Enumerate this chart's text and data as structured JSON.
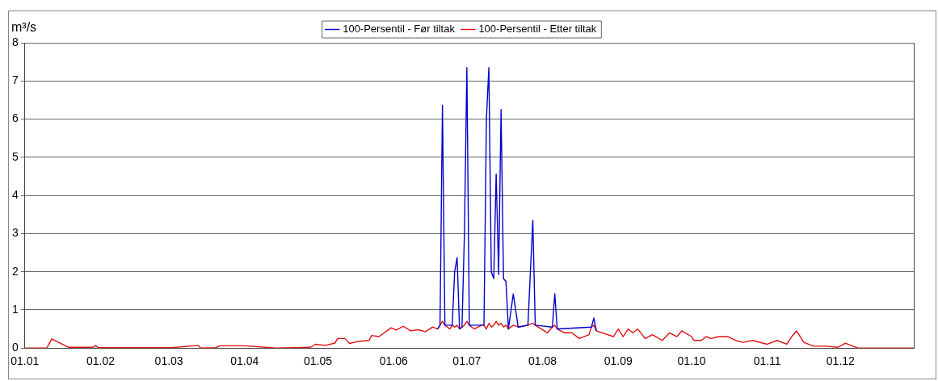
{
  "chart_data": {
    "type": "line",
    "ylabel": "m³/s",
    "legend": "top",
    "grid": "y",
    "marker": "none",
    "line_style": "solid",
    "xlim": [
      "--01-01",
      "--12-31"
    ],
    "xticks": [
      {
        "value": "--01-01",
        "label": "01.01"
      },
      {
        "value": "--02-01",
        "label": "01.02"
      },
      {
        "value": "--03-01",
        "label": "01.03"
      },
      {
        "value": "--04-01",
        "label": "01.04"
      },
      {
        "value": "--05-01",
        "label": "01.05"
      },
      {
        "value": "--06-01",
        "label": "01.06"
      },
      {
        "value": "--07-01",
        "label": "01.07"
      },
      {
        "value": "--08-01",
        "label": "01.08"
      },
      {
        "value": "--09-01",
        "label": "01.09"
      },
      {
        "value": "--10-01",
        "label": "01.10"
      },
      {
        "value": "--11-01",
        "label": "01.11"
      },
      {
        "value": "--12-01",
        "label": "01.12"
      }
    ],
    "ylim": [
      0,
      8
    ],
    "yticks": [
      0,
      1,
      2,
      3,
      4,
      5,
      6,
      7,
      8
    ],
    "series": [
      {
        "name": "100-Persentil - Før tiltak",
        "color": "#0000cc",
        "x": [
          "--06-19",
          "--06-20",
          "--06-21",
          "--06-22",
          "--06-25",
          "--06-26",
          "--06-27",
          "--06-28",
          "--06-29",
          "--06-30",
          "--07-01",
          "--07-02",
          "--07-08",
          "--07-09",
          "--07-10",
          "--07-11",
          "--07-12",
          "--07-13",
          "--07-14",
          "--07-15",
          "--07-16",
          "--07-17",
          "--07-18",
          "--07-20",
          "--07-22",
          "--07-26",
          "--07-28",
          "--07-29",
          "--08-05",
          "--08-06",
          "--08-07",
          "--08-21",
          "--08-22",
          "--08-23"
        ],
        "values": [
          0.5,
          0.6,
          6.36,
          0.6,
          0.6,
          2.0,
          2.37,
          0.5,
          0.55,
          3.0,
          7.35,
          0.6,
          0.6,
          6.0,
          7.35,
          2.0,
          1.82,
          4.56,
          1.93,
          6.25,
          1.82,
          1.75,
          0.5,
          1.42,
          0.55,
          0.6,
          3.35,
          0.6,
          0.55,
          1.42,
          0.5,
          0.55,
          0.79,
          0.45
        ]
      },
      {
        "name": "100-Persentil - Etter tiltak",
        "color": "#e01010",
        "x": [
          "--01-01",
          "--01-10",
          "--01-12",
          "--01-19",
          "--01-29",
          "--01-30",
          "--01-31",
          "--03-02",
          "--03-13",
          "--03-14",
          "--03-20",
          "--03-22",
          "--04-01",
          "--04-14",
          "--04-28",
          "--04-30",
          "--05-04",
          "--05-08",
          "--05-09",
          "--05-12",
          "--05-14",
          "--05-18",
          "--05-22",
          "--05-23",
          "--05-26",
          "--05-31",
          "--06-02",
          "--06-05",
          "--06-08",
          "--06-11",
          "--06-14",
          "--06-17",
          "--06-19",
          "--06-20",
          "--06-21",
          "--06-22",
          "--06-24",
          "--06-25",
          "--06-26",
          "--06-27",
          "--06-28",
          "--06-29",
          "--06-30",
          "--07-01",
          "--07-02",
          "--07-04",
          "--07-07",
          "--07-08",
          "--07-09",
          "--07-10",
          "--07-11",
          "--07-12",
          "--07-13",
          "--07-14",
          "--07-15",
          "--07-16",
          "--07-17",
          "--07-18",
          "--07-20",
          "--07-22",
          "--07-26",
          "--07-28",
          "--07-29",
          "--08-03",
          "--08-05",
          "--08-06",
          "--08-07",
          "--08-10",
          "--08-13",
          "--08-16",
          "--08-20",
          "--08-21",
          "--08-22",
          "--08-23",
          "--08-30",
          "--09-01",
          "--09-03",
          "--09-05",
          "--09-07",
          "--09-09",
          "--09-12",
          "--09-15",
          "--09-19",
          "--09-22",
          "--09-25",
          "--09-27",
          "--10-01",
          "--10-02",
          "--10-05",
          "--10-07",
          "--10-09",
          "--10-12",
          "--10-16",
          "--10-19",
          "--10-22",
          "--10-26",
          "--11-01",
          "--11-05",
          "--11-09",
          "--11-11",
          "--11-13",
          "--11-16",
          "--11-20",
          "--11-25",
          "--11-30",
          "--12-03",
          "--12-08",
          "--12-31"
        ],
        "values": [
          0,
          0,
          0.24,
          0.02,
          0.02,
          0.07,
          0.01,
          0.01,
          0.07,
          0,
          0.01,
          0.06,
          0.06,
          0,
          0.02,
          0.1,
          0.07,
          0.13,
          0.25,
          0.25,
          0.12,
          0.18,
          0.2,
          0.33,
          0.3,
          0.53,
          0.47,
          0.57,
          0.45,
          0.48,
          0.43,
          0.55,
          0.5,
          0.6,
          0.7,
          0.6,
          0.5,
          0.6,
          0.55,
          0.6,
          0.5,
          0.55,
          0.6,
          0.7,
          0.6,
          0.5,
          0.6,
          0.6,
          0.5,
          0.65,
          0.55,
          0.6,
          0.7,
          0.6,
          0.65,
          0.55,
          0.6,
          0.5,
          0.6,
          0.55,
          0.6,
          0.65,
          0.6,
          0.4,
          0.55,
          0.6,
          0.5,
          0.4,
          0.4,
          0.25,
          0.35,
          0.55,
          0.6,
          0.45,
          0.3,
          0.5,
          0.3,
          0.5,
          0.4,
          0.5,
          0.25,
          0.35,
          0.2,
          0.4,
          0.3,
          0.45,
          0.3,
          0.2,
          0.2,
          0.3,
          0.25,
          0.3,
          0.3,
          0.2,
          0.15,
          0.2,
          0.1,
          0.2,
          0.1,
          0.3,
          0.45,
          0.15,
          0.05,
          0.05,
          0.02,
          0.13,
          0,
          0
        ]
      }
    ]
  }
}
